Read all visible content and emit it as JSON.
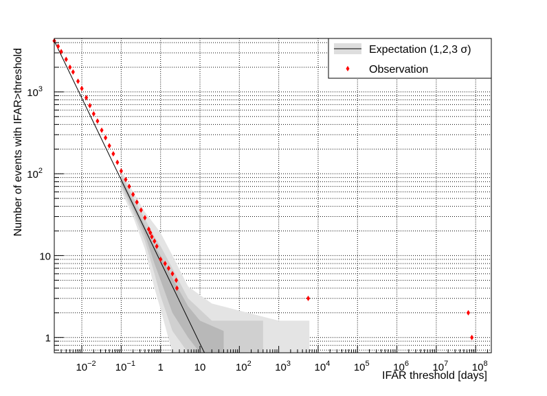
{
  "chart_data": {
    "type": "scatter",
    "title": "",
    "xlabel": "IFAR threshold [days]",
    "ylabel": "Number of events with IFAR>threshold",
    "xscale": "log",
    "yscale": "log",
    "xlim": [
      0.002,
      250000000
    ],
    "ylim": [
      0.65,
      4500
    ],
    "grid": true,
    "legend_position": "top-right",
    "x_ticks": [
      {
        "base": "10",
        "exp": "−2"
      },
      {
        "base": "10",
        "exp": "−1"
      },
      {
        "base": "1",
        "exp": ""
      },
      {
        "base": "10",
        "exp": ""
      },
      {
        "base": "10",
        "exp": "2"
      },
      {
        "base": "10",
        "exp": "3"
      },
      {
        "base": "10",
        "exp": "4"
      },
      {
        "base": "10",
        "exp": "5"
      },
      {
        "base": "10",
        "exp": "6"
      },
      {
        "base": "10",
        "exp": "7"
      },
      {
        "base": "10",
        "exp": "8"
      }
    ],
    "x_tick_values": [
      0.01,
      0.1,
      1,
      10,
      100,
      1000,
      10000,
      100000,
      1000000,
      10000000,
      100000000
    ],
    "y_ticks": [
      {
        "base": "1",
        "exp": ""
      },
      {
        "base": "10",
        "exp": ""
      },
      {
        "base": "10",
        "exp": "2"
      },
      {
        "base": "10",
        "exp": "3"
      }
    ],
    "y_tick_values": [
      1,
      10,
      100,
      1000
    ],
    "series": [
      {
        "name": "Expectation (1,2,3 σ)",
        "kind": "expectation_band",
        "line": [
          [
            0.002,
            4200
          ],
          [
            0.1,
            84
          ],
          [
            1,
            8.4
          ],
          [
            10,
            0.84
          ],
          [
            13,
            0.65
          ]
        ],
        "band_3sigma": {
          "x": [
            0.1,
            0.2,
            0.4,
            0.7,
            1,
            2,
            5,
            20,
            1000,
            6000
          ],
          "ylo": [
            62,
            30,
            12,
            4,
            2.2,
            0.65,
            0.65,
            0.65,
            0.65,
            0.65
          ],
          "yhi": [
            110,
            60,
            34,
            24,
            19,
            10,
            4.2,
            2.6,
            1.6,
            1.6
          ]
        },
        "band_2sigma": {
          "x": [
            0.1,
            0.2,
            0.4,
            0.7,
            1,
            2,
            5,
            20,
            400
          ],
          "ylo": [
            70,
            34,
            15,
            6,
            3.2,
            1.2,
            0.65,
            0.65,
            0.65
          ],
          "yhi": [
            100,
            52,
            28,
            17,
            13,
            7,
            3,
            1.6,
            1.6
          ]
        },
        "band_1sigma": {
          "x": [
            0.1,
            0.2,
            0.4,
            0.7,
            1,
            2,
            5,
            10,
            40
          ],
          "ylo": [
            76,
            38,
            18,
            8,
            5,
            2,
            1,
            0.65,
            0.65
          ],
          "yhi": [
            92,
            46,
            23,
            13,
            10,
            5.3,
            2.4,
            1.6,
            1.2
          ]
        }
      },
      {
        "name": "Observation",
        "kind": "points",
        "color": "#ff0000",
        "points": [
          [
            0.002,
            4200
          ],
          [
            0.0025,
            3600
          ],
          [
            0.003,
            3100
          ],
          [
            0.004,
            2500
          ],
          [
            0.005,
            2000
          ],
          [
            0.006,
            1750
          ],
          [
            0.008,
            1350
          ],
          [
            0.01,
            1100
          ],
          [
            0.013,
            850
          ],
          [
            0.016,
            680
          ],
          [
            0.02,
            540
          ],
          [
            0.025,
            440
          ],
          [
            0.032,
            340
          ],
          [
            0.04,
            275
          ],
          [
            0.05,
            220
          ],
          [
            0.063,
            175
          ],
          [
            0.08,
            138
          ],
          [
            0.1,
            108
          ],
          [
            0.13,
            85
          ],
          [
            0.16,
            70
          ],
          [
            0.2,
            56
          ],
          [
            0.25,
            45
          ],
          [
            0.32,
            36
          ],
          [
            0.4,
            29
          ],
          [
            0.5,
            21
          ],
          [
            0.55,
            19
          ],
          [
            0.6,
            17
          ],
          [
            0.7,
            15
          ],
          [
            0.8,
            13
          ],
          [
            1.0,
            9
          ],
          [
            1.3,
            8
          ],
          [
            1.6,
            7
          ],
          [
            2.0,
            6
          ],
          [
            2.5,
            5
          ],
          [
            2.6,
            4
          ],
          [
            5600,
            3
          ],
          [
            65000000,
            2
          ],
          [
            80000000,
            1
          ]
        ]
      }
    ]
  }
}
